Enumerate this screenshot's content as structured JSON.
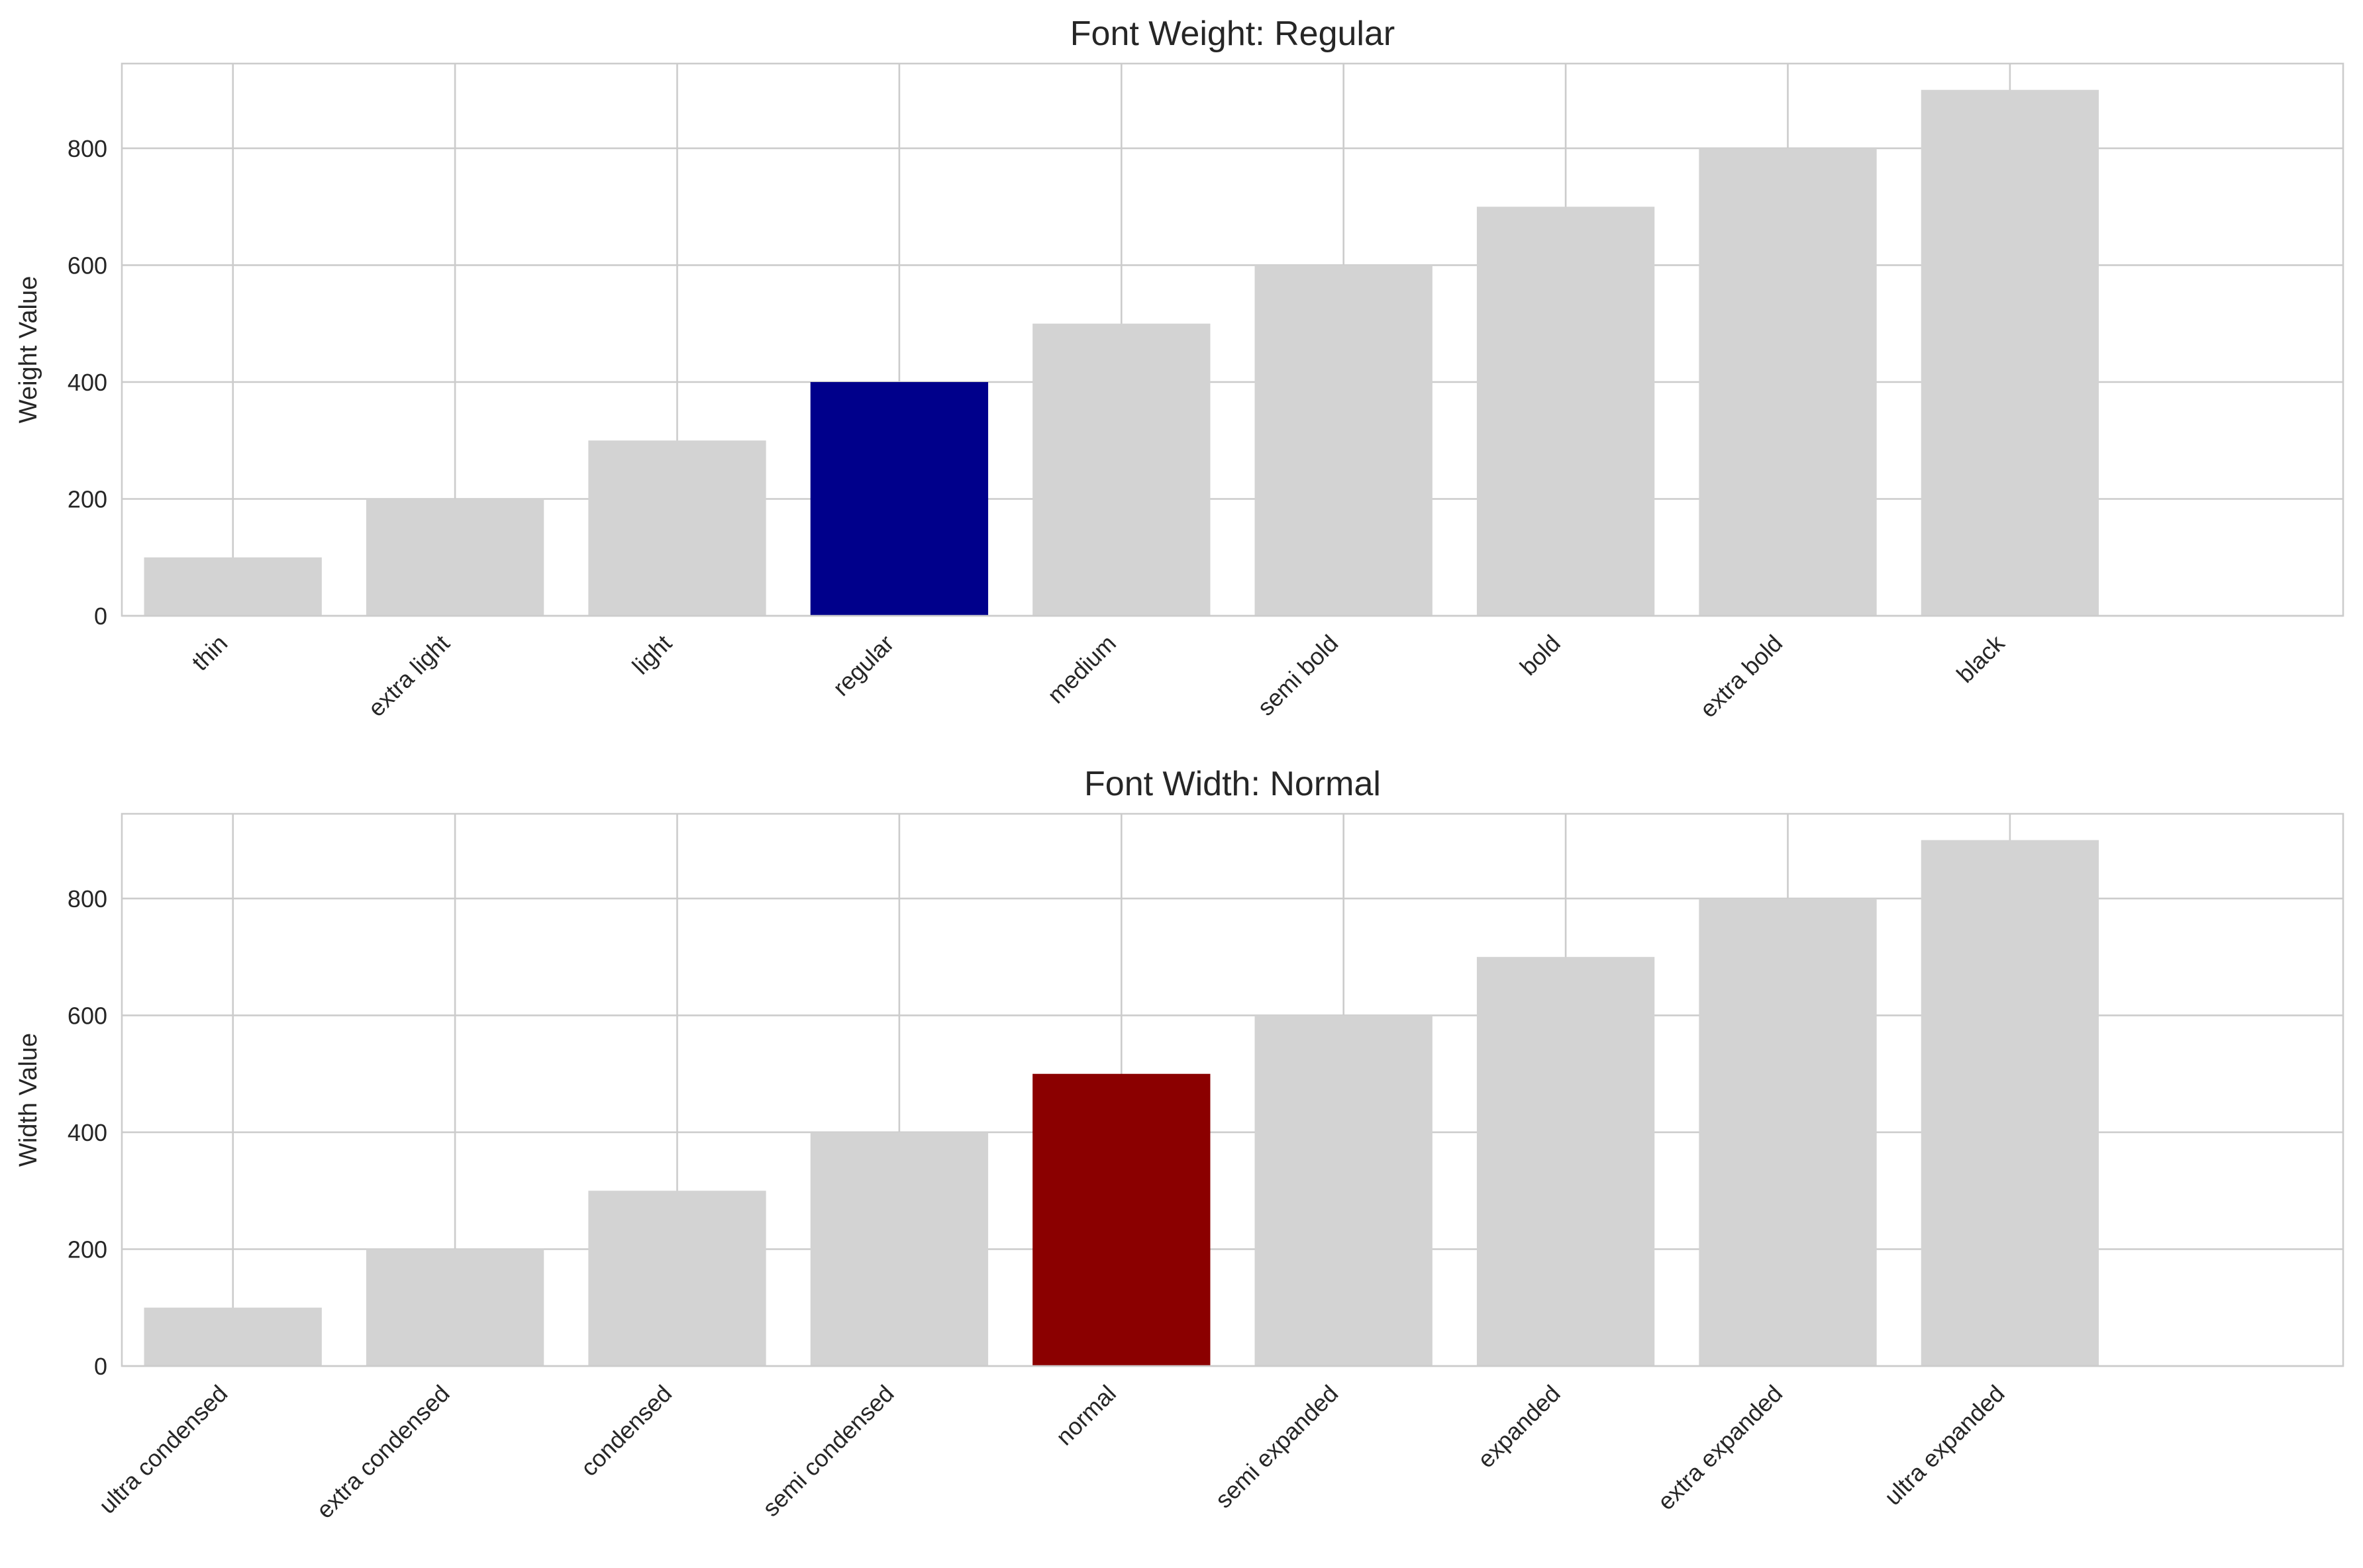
{
  "figure": {
    "background": "#ffffff",
    "grid_color": "#cccccc",
    "text_color": "#262626"
  },
  "chart_data": [
    {
      "type": "bar",
      "title": "Font Weight: Regular",
      "xlabel": "",
      "ylabel": "Weight Value",
      "categories": [
        "thin",
        "extra light",
        "light",
        "regular",
        "medium",
        "semi bold",
        "bold",
        "extra bold",
        "black"
      ],
      "values": [
        100,
        200,
        300,
        400,
        500,
        600,
        700,
        800,
        900
      ],
      "highlight": "regular",
      "bar_color": "#d3d3d3",
      "highlight_color": "#00008b",
      "ylim": [
        0,
        945
      ],
      "yticks": [
        0,
        200,
        400,
        600,
        800
      ],
      "grid": true,
      "xtick_rotation": 45
    },
    {
      "type": "bar",
      "title": "Font Width: Normal",
      "xlabel": "",
      "ylabel": "Width Value",
      "categories": [
        "ultra condensed",
        "extra condensed",
        "condensed",
        "semi condensed",
        "normal",
        "semi expanded",
        "expanded",
        "extra expanded",
        "ultra expanded"
      ],
      "values": [
        100,
        200,
        300,
        400,
        500,
        600,
        700,
        800,
        900
      ],
      "highlight": "normal",
      "bar_color": "#d3d3d3",
      "highlight_color": "#8b0000",
      "ylim": [
        0,
        945
      ],
      "yticks": [
        0,
        200,
        400,
        600,
        800
      ],
      "grid": true,
      "xtick_rotation": 45
    }
  ]
}
